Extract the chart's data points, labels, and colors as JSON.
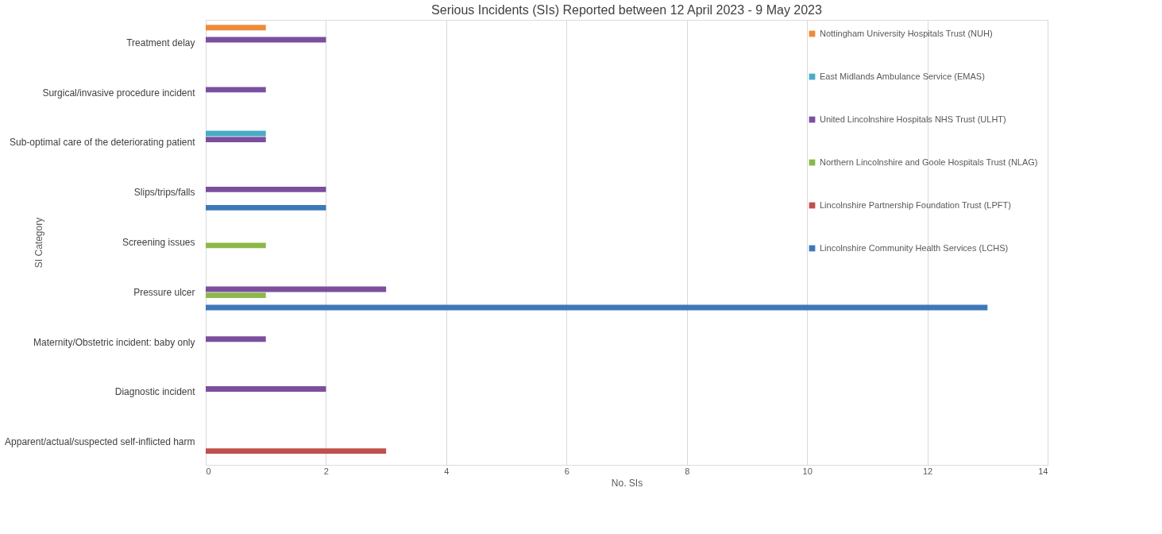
{
  "chart_data": {
    "type": "bar",
    "orientation": "horizontal",
    "title": "Serious Incidents (SIs) Reported between 12 April 2023 - 9 May 2023",
    "xlabel": "No. SIs",
    "ylabel": "SI Category",
    "categories": [
      "Treatment delay",
      "Surgical/invasive procedure incident",
      "Sub-optimal care of the deteriorating patient",
      "Slips/trips/falls",
      "Screening issues",
      "Pressure ulcer",
      "Maternity/Obstetric incident: baby only",
      "Diagnostic incident",
      "Apparent/actual/suspected self-inflicted harm"
    ],
    "series": [
      {
        "name": "Nottingham University Hospitals Trust (NUH)",
        "color": "#ed8b3a",
        "values": [
          1,
          null,
          null,
          null,
          null,
          null,
          null,
          null,
          null
        ]
      },
      {
        "name": "East Midlands Ambulance Service (EMAS)",
        "color": "#4bacc6",
        "values": [
          null,
          null,
          1,
          null,
          null,
          null,
          null,
          null,
          null
        ]
      },
      {
        "name": "United Lincolnshire Hospitals NHS Trust (ULHT)",
        "color": "#7b4f9e",
        "values": [
          2,
          1,
          1,
          2,
          null,
          3,
          1,
          2,
          null
        ]
      },
      {
        "name": "Northern Lincolnshire and Goole Hospitals Trust (NLAG)",
        "color": "#8cb84a",
        "values": [
          null,
          null,
          null,
          null,
          1,
          1,
          null,
          null,
          null
        ]
      },
      {
        "name": "Lincolnshire Partnership Foundation Trust (LPFT)",
        "color": "#c0504d",
        "values": [
          null,
          null,
          null,
          null,
          null,
          null,
          null,
          null,
          3
        ]
      },
      {
        "name": "Lincolnshire Community Health Services (LCHS)",
        "color": "#3f78b8",
        "values": [
          null,
          null,
          null,
          2,
          null,
          13,
          null,
          null,
          null
        ]
      }
    ],
    "xlim": [
      0,
      14
    ],
    "xticks": [
      0,
      2,
      4,
      6,
      8,
      10,
      12,
      14
    ],
    "grid": "x",
    "legend": "top right"
  }
}
